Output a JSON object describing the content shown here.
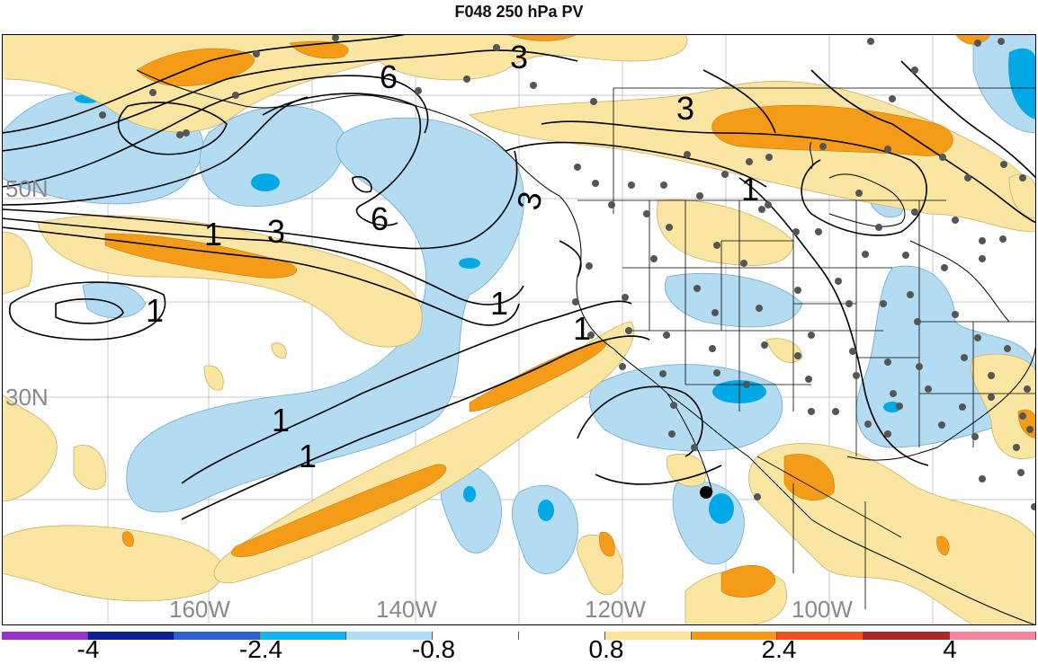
{
  "title": "F048 250 hPa PV",
  "lat_labels": [
    "50N",
    "30N"
  ],
  "lon_labels": [
    "160W",
    "140W",
    "120W",
    "100W"
  ],
  "contour_labels": [
    "6",
    "3",
    "3",
    "6",
    "3",
    "1",
    "1",
    "3",
    "1",
    "1",
    "1",
    "1",
    "1"
  ],
  "colorbar": {
    "colors": [
      "#9b32c8",
      "#0c1f8f",
      "#2e62d3",
      "#10b4ee",
      "#aedcf5",
      "#ffffff",
      "#ffffff",
      "#fce598",
      "#f59a12",
      "#f0501e",
      "#a52a28",
      "#f4829b"
    ],
    "tick_labels": [
      "-4",
      "-2.4",
      "-0.8",
      "0.8",
      "2.4",
      "4"
    ]
  },
  "colors": {
    "light_blue": "#b3dcf3",
    "mid_blue": "#00a9e6",
    "light_yellow": "#fbe6a1",
    "orange": "#f49b17",
    "contour": "#000000",
    "station": "#555555",
    "grid": "#c8c8c8"
  }
}
